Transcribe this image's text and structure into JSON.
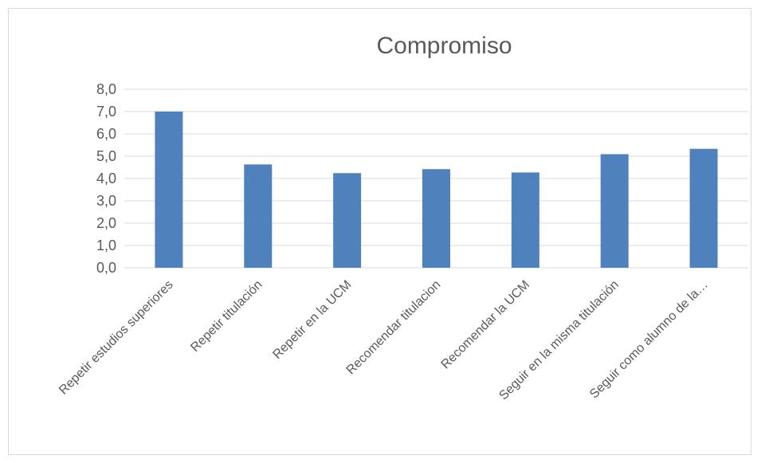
{
  "chart_data": {
    "type": "bar",
    "title": "Compromiso",
    "xlabel": "",
    "ylabel": "",
    "categories": [
      "Repetir estudios superiores",
      "Repetir titulación",
      "Repetir en la UCM",
      "Recomendar titulacion",
      "Recomendar la UCM",
      "Seguir en la misma titulación",
      "Seguir como alumno de la…"
    ],
    "values": [
      7.0,
      4.63,
      4.24,
      4.42,
      4.27,
      5.09,
      5.33
    ],
    "ylim": [
      0,
      8
    ],
    "yticks": [
      "0,0",
      "1,0",
      "2,0",
      "3,0",
      "4,0",
      "5,0",
      "6,0",
      "7,0",
      "8,0"
    ],
    "grid": true,
    "legend": "none",
    "bar_color": "#4f81bd",
    "grid_color": "#d9d9d9"
  }
}
